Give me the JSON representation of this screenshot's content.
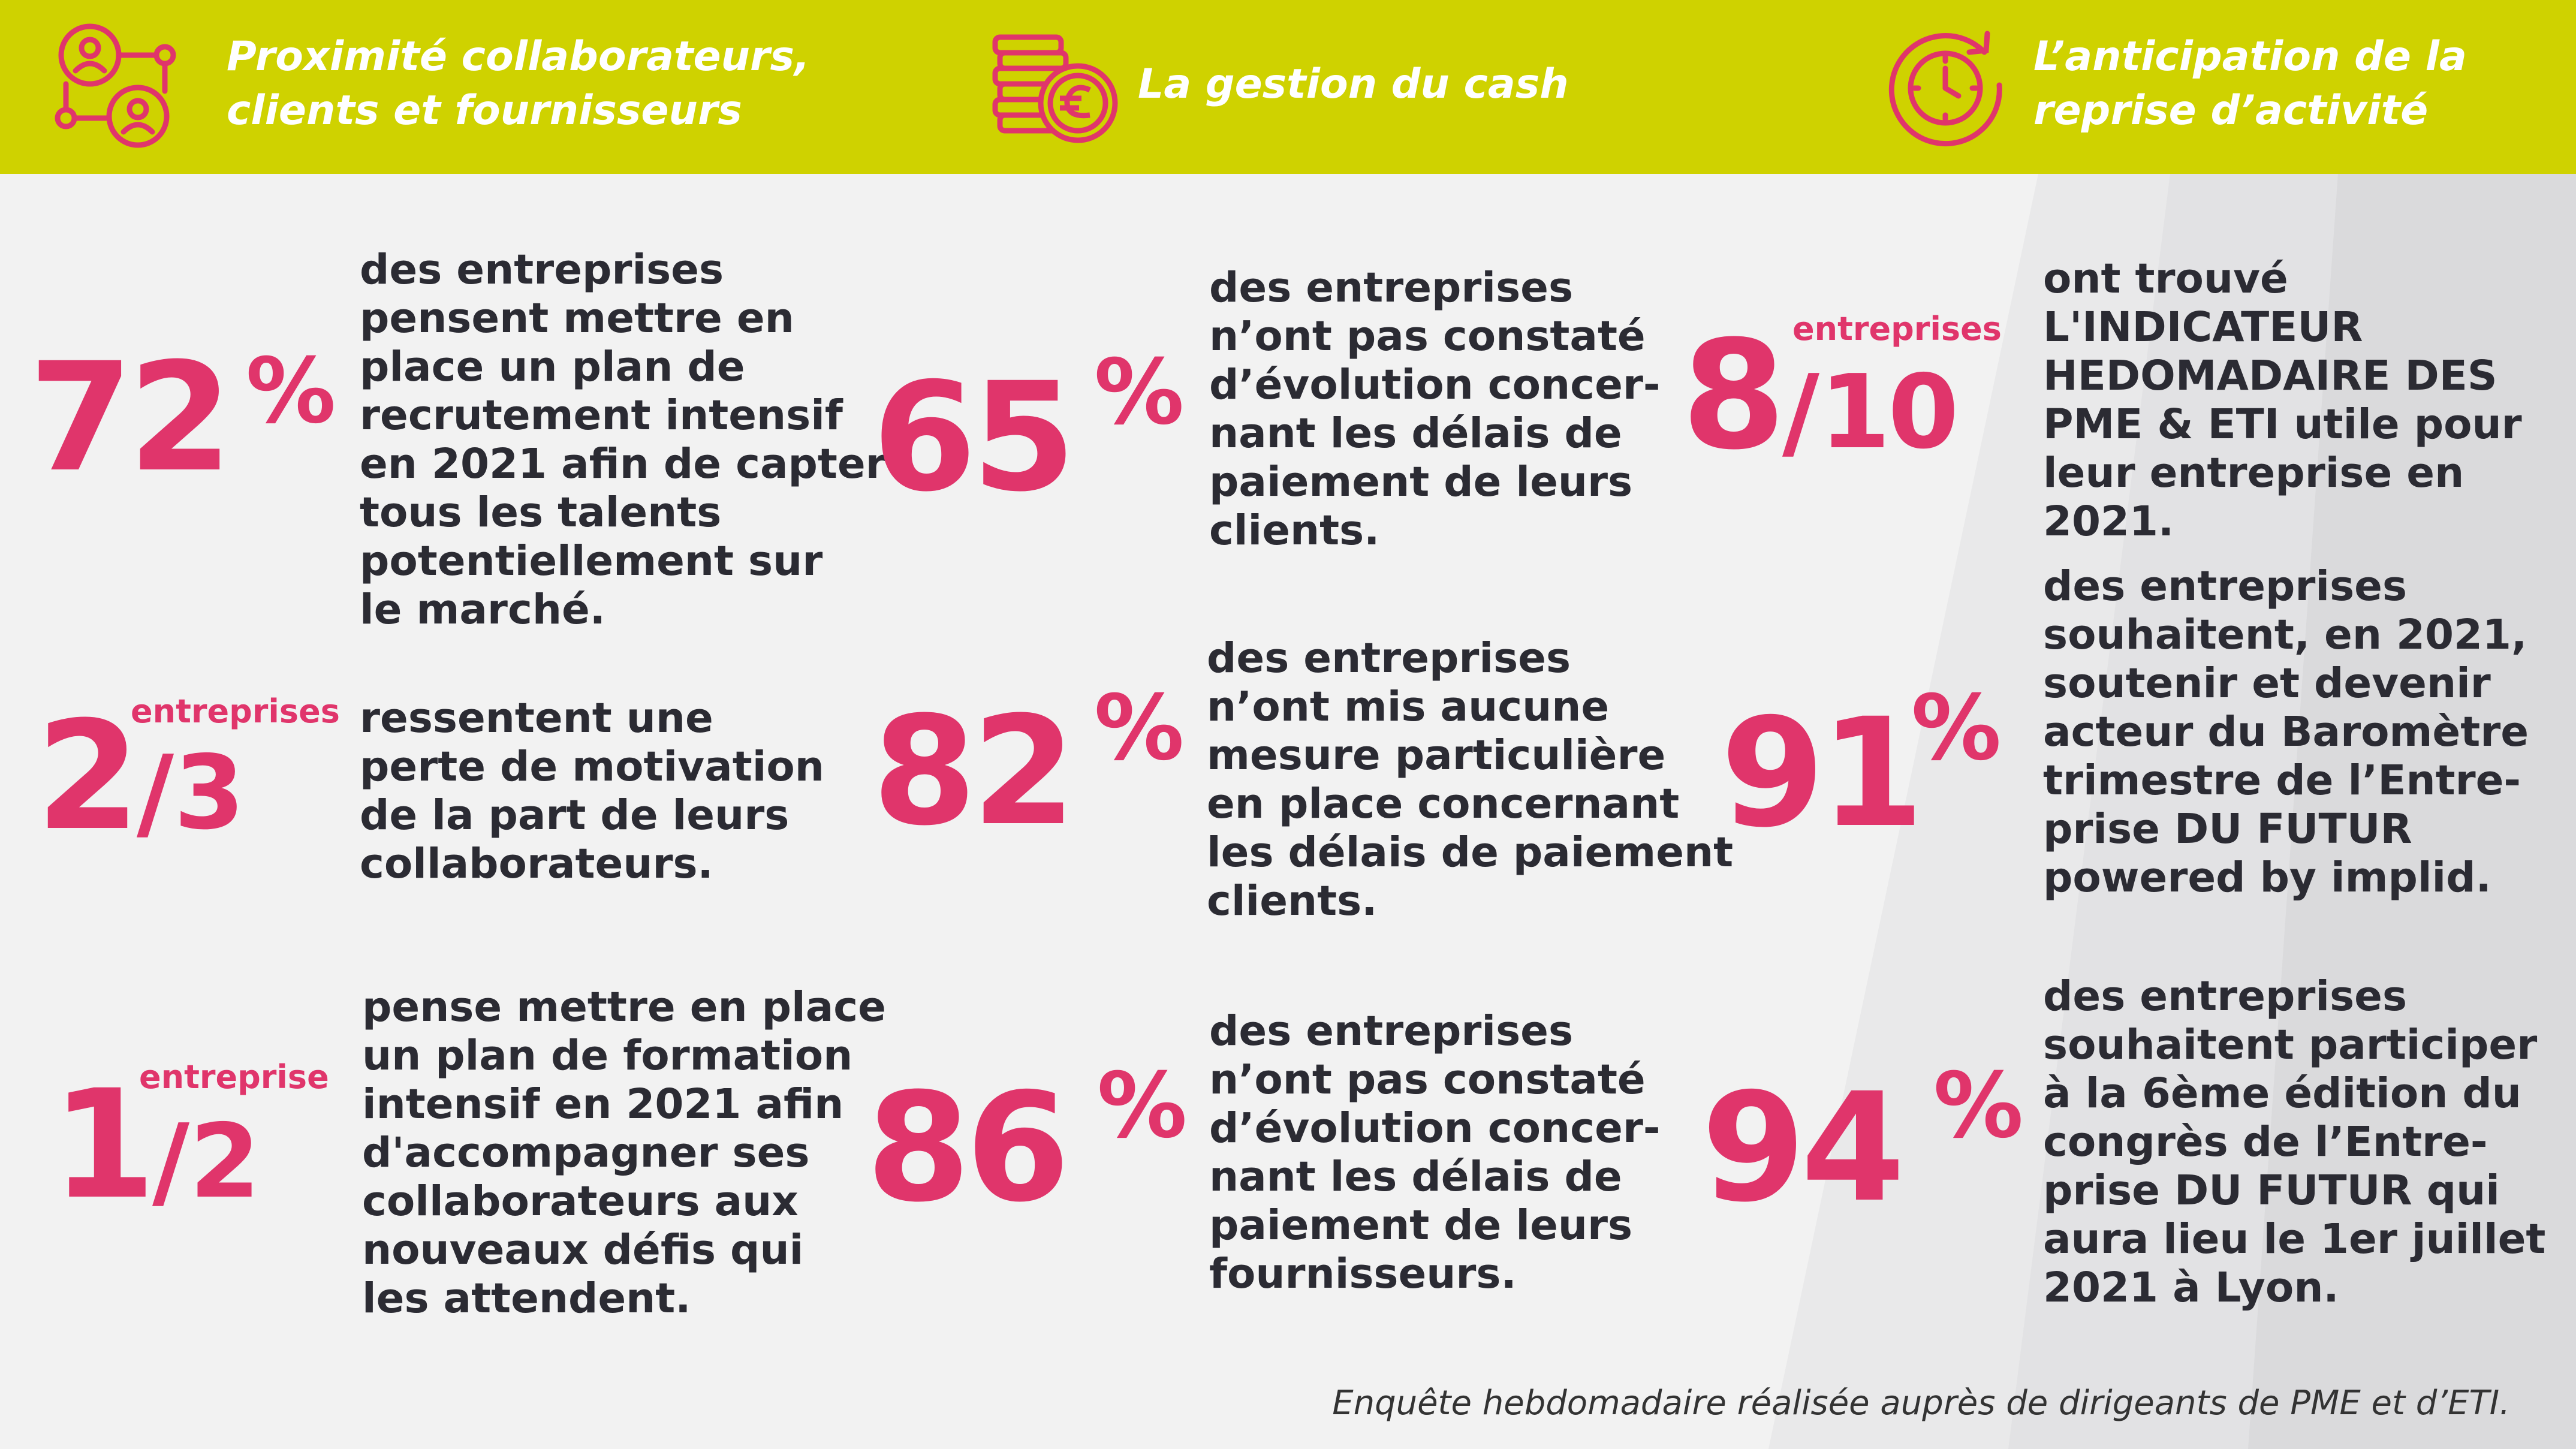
{
  "header": {
    "col1_title_line1": "Proximité collaborateurs,",
    "col1_title_line2": "clients et fournisseurs",
    "col2_title": "La gestion du cash",
    "col3_title_line1": "L’anticipation de la",
    "col3_title_line2": "reprise d’activité"
  },
  "colors": {
    "accent": "#e0356b",
    "header_bg": "#cfd200",
    "text": "#2b2b33",
    "background": "#f2f2f2"
  },
  "col1": {
    "stat1": {
      "number": "72",
      "sign": "%",
      "text": "des entreprises\npensent mettre en\nplace un plan de\nrecrutement intensif\nen 2021 afin de capter\ntous les talents\npotentiellement sur\nle marché."
    },
    "stat2": {
      "label": "entreprises",
      "numerator": "2",
      "slash": "/",
      "denominator": "3",
      "text": "ressentent une\nperte de motivation\nde la part de leurs\ncollaborateurs."
    },
    "stat3": {
      "label": "entreprise",
      "numerator": "1",
      "slash": "/",
      "denominator": "2",
      "text": "pense mettre en place\nun plan de formation\nintensif en 2021 afin\nd'accompagner ses\ncollaborateurs aux\nnouveaux défis qui\nles attendent."
    }
  },
  "col2": {
    "stat1": {
      "number": "65",
      "sign": "%",
      "text": "des entreprises\nn’ont pas constaté\nd’évolution concer-\nnant les délais de\npaiement de leurs\nclients."
    },
    "stat2": {
      "number": "82",
      "sign": "%",
      "text": "des entreprises\nn’ont mis aucune\nmesure particulière\nen place concernant\nles délais de paiement\nclients."
    },
    "stat3": {
      "number": "86",
      "sign": "%",
      "text": "des entreprises\nn’ont pas constaté\nd’évolution concer-\nnant les délais de\npaiement de leurs\nfournisseurs."
    }
  },
  "col3": {
    "stat1": {
      "label": "entreprises",
      "numerator": "8",
      "slash": "/",
      "denominator": "10",
      "text": "ont trouvé\nL'INDICATEUR\nHEDOMADAIRE DES\nPME & ETI utile pour\nleur entreprise en 2021."
    },
    "stat2": {
      "number": "91",
      "sign": "%",
      "text": "des entreprises\nsouhaitent, en 2021,\nsoutenir et devenir\nacteur du Baromètre\ntrimestre de l’Entre-\nprise DU FUTUR\npowered by implid."
    },
    "stat3": {
      "number": "94",
      "sign": "%",
      "text": "des entreprises\nsouhaitent participer\nà la 6ème édition du\ncongrès de l’Entre-\nprise DU FUTUR qui\naura lieu le 1er juillet\n2021 à Lyon."
    }
  },
  "footer": {
    "note": "Enquête hebdomadaire réalisée auprès de dirigeants de PME et d’ETI."
  },
  "icons": {
    "col1": "people-network-icon",
    "col2": "euro-coins-icon",
    "col3": "clock-refresh-icon"
  }
}
